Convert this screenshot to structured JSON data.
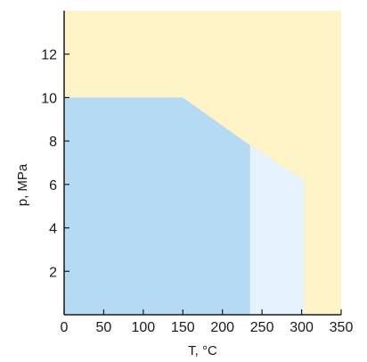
{
  "chart_data": {
    "type": "area",
    "xlabel": "T, °C",
    "ylabel": "p, MPa",
    "xlim": [
      0,
      350
    ],
    "ylim": [
      0,
      14
    ],
    "x_ticks": [
      0,
      50,
      100,
      150,
      200,
      250,
      300,
      350
    ],
    "y_ticks": [
      2,
      4,
      6,
      8,
      10,
      12
    ],
    "grid": false,
    "legend": "none",
    "regions": [
      {
        "color": "#fdf3c6",
        "points": [
          [
            0,
            0
          ],
          [
            350,
            0
          ],
          [
            350,
            14
          ],
          [
            0,
            14
          ]
        ]
      },
      {
        "color": "#e6f3fc",
        "points": [
          [
            235,
            0
          ],
          [
            303,
            0
          ],
          [
            303,
            6.2
          ],
          [
            235,
            7.8
          ]
        ]
      },
      {
        "color": "#b7daf4",
        "points": [
          [
            0,
            0
          ],
          [
            235,
            0
          ],
          [
            235,
            7.8
          ],
          [
            150,
            10
          ],
          [
            0,
            10
          ]
        ]
      }
    ]
  }
}
